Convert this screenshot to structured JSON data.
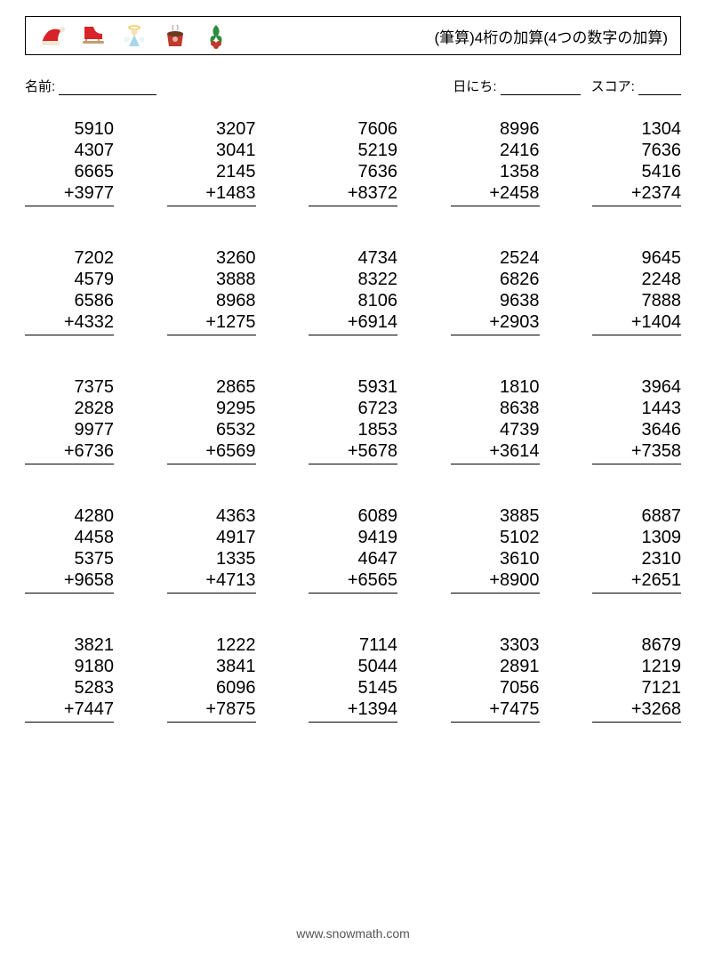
{
  "title": "(筆算)4桁の加算(4つの数字の加算)",
  "labels": {
    "name": "名前:",
    "date": "日にち:",
    "score": "スコア:"
  },
  "underline_widths": {
    "name": 110,
    "date": 90,
    "score": 48
  },
  "style": {
    "page_bg": "#ffffff",
    "text_color": "#000000",
    "font_size_problem": 20,
    "font_size_title": 17,
    "font_size_labels": 15
  },
  "icons": [
    {
      "name": "santa-hat",
      "fill": "#d8232a",
      "accent": "#f3e9d2"
    },
    {
      "name": "ice-skate",
      "fill": "#d8232a",
      "accent": "#bfa06a"
    },
    {
      "name": "angel",
      "fill": "#a6d8e7",
      "accent": "#f0c95b"
    },
    {
      "name": "hot-cocoa",
      "fill": "#c0392b",
      "accent": "#ffffff"
    },
    {
      "name": "holly",
      "fill": "#2e8b3d",
      "accent": "#c0392b"
    }
  ],
  "problems": [
    [
      {
        "a": 5910,
        "b": 4307,
        "c": 6665,
        "d": 3977
      },
      {
        "a": 3207,
        "b": 3041,
        "c": 2145,
        "d": 1483
      },
      {
        "a": 7606,
        "b": 5219,
        "c": 7636,
        "d": 8372
      },
      {
        "a": 8996,
        "b": 2416,
        "c": 1358,
        "d": 2458
      },
      {
        "a": 1304,
        "b": 7636,
        "c": 5416,
        "d": 2374
      }
    ],
    [
      {
        "a": 7202,
        "b": 4579,
        "c": 6586,
        "d": 4332
      },
      {
        "a": 3260,
        "b": 3888,
        "c": 8968,
        "d": 1275
      },
      {
        "a": 4734,
        "b": 8322,
        "c": 8106,
        "d": 6914
      },
      {
        "a": 2524,
        "b": 6826,
        "c": 9638,
        "d": 2903
      },
      {
        "a": 9645,
        "b": 2248,
        "c": 7888,
        "d": 1404
      }
    ],
    [
      {
        "a": 7375,
        "b": 2828,
        "c": 9977,
        "d": 6736
      },
      {
        "a": 2865,
        "b": 9295,
        "c": 6532,
        "d": 6569
      },
      {
        "a": 5931,
        "b": 6723,
        "c": 1853,
        "d": 5678
      },
      {
        "a": 1810,
        "b": 8638,
        "c": 4739,
        "d": 3614
      },
      {
        "a": 3964,
        "b": 1443,
        "c": 3646,
        "d": 7358
      }
    ],
    [
      {
        "a": 4280,
        "b": 4458,
        "c": 5375,
        "d": 9658
      },
      {
        "a": 4363,
        "b": 4917,
        "c": 1335,
        "d": 4713
      },
      {
        "a": 6089,
        "b": 9419,
        "c": 4647,
        "d": 6565
      },
      {
        "a": 3885,
        "b": 5102,
        "c": 3610,
        "d": 8900
      },
      {
        "a": 6887,
        "b": 1309,
        "c": 2310,
        "d": 2651
      }
    ],
    [
      {
        "a": 3821,
        "b": 9180,
        "c": 5283,
        "d": 7447
      },
      {
        "a": 1222,
        "b": 3841,
        "c": 6096,
        "d": 7875
      },
      {
        "a": 7114,
        "b": 5044,
        "c": 5145,
        "d": 1394
      },
      {
        "a": 3303,
        "b": 2891,
        "c": 7056,
        "d": 7475
      },
      {
        "a": 8679,
        "b": 1219,
        "c": 7121,
        "d": 3268
      }
    ]
  ],
  "footer": "www.snowmath.com"
}
